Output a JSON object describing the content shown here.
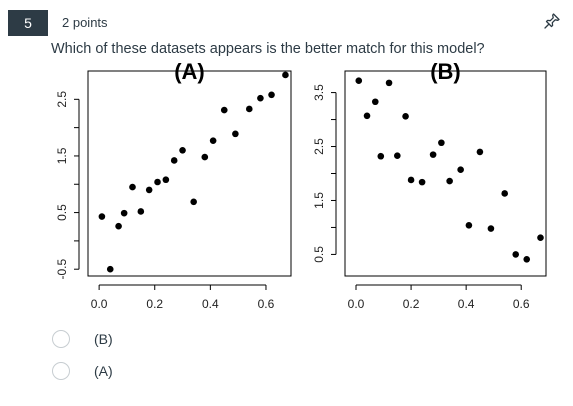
{
  "question": {
    "number": "5",
    "points": "2 points",
    "prompt": "Which of these datasets appears is the better match for this model?"
  },
  "icons": {
    "pin": "pin-icon"
  },
  "chart_data": [
    {
      "type": "scatter",
      "title": "(A)",
      "xlabel": "",
      "ylabel": "",
      "xlim": [
        -0.04,
        0.69
      ],
      "ylim": [
        -0.62,
        3.0
      ],
      "xticks": [
        "0.0",
        "0.2",
        "0.4",
        "0.6"
      ],
      "xtick_values": [
        0.0,
        0.2,
        0.4,
        0.6
      ],
      "yticks": [
        "-0.5",
        "0.5",
        "1.5",
        "2.5"
      ],
      "ytick_values": [
        -0.5,
        0.5,
        1.5,
        2.5
      ],
      "points": [
        [
          0.01,
          0.43
        ],
        [
          0.04,
          -0.5
        ],
        [
          0.07,
          0.26
        ],
        [
          0.09,
          0.49
        ],
        [
          0.12,
          0.95
        ],
        [
          0.15,
          0.52
        ],
        [
          0.18,
          0.9
        ],
        [
          0.21,
          1.04
        ],
        [
          0.24,
          1.08
        ],
        [
          0.27,
          1.42
        ],
        [
          0.3,
          1.6
        ],
        [
          0.34,
          0.69
        ],
        [
          0.38,
          1.48
        ],
        [
          0.41,
          1.77
        ],
        [
          0.45,
          2.31
        ],
        [
          0.49,
          1.89
        ],
        [
          0.54,
          2.33
        ],
        [
          0.58,
          2.52
        ],
        [
          0.62,
          2.58
        ],
        [
          0.67,
          2.93
        ]
      ]
    },
    {
      "type": "scatter",
      "title": "(B)",
      "xlabel": "",
      "ylabel": "",
      "xlim": [
        -0.04,
        0.69
      ],
      "ylim": [
        0.1,
        3.9
      ],
      "xticks": [
        "0.0",
        "0.2",
        "0.4",
        "0.6"
      ],
      "xtick_values": [
        0.0,
        0.2,
        0.4,
        0.6
      ],
      "yticks": [
        "0.5",
        "1.5",
        "2.5",
        "3.5"
      ],
      "ytick_values": [
        0.5,
        1.5,
        2.5,
        3.5
      ],
      "points": [
        [
          0.01,
          3.72
        ],
        [
          0.04,
          3.07
        ],
        [
          0.07,
          3.33
        ],
        [
          0.09,
          2.32
        ],
        [
          0.12,
          3.68
        ],
        [
          0.15,
          2.33
        ],
        [
          0.18,
          3.06
        ],
        [
          0.2,
          1.88
        ],
        [
          0.24,
          1.84
        ],
        [
          0.28,
          2.35
        ],
        [
          0.31,
          2.57
        ],
        [
          0.34,
          1.86
        ],
        [
          0.38,
          2.07
        ],
        [
          0.41,
          1.04
        ],
        [
          0.45,
          2.4
        ],
        [
          0.49,
          0.98
        ],
        [
          0.54,
          1.63
        ],
        [
          0.58,
          0.5
        ],
        [
          0.62,
          0.41
        ],
        [
          0.67,
          0.81
        ]
      ]
    }
  ],
  "choices": [
    {
      "label": "(B)"
    },
    {
      "label": "(A)"
    }
  ]
}
